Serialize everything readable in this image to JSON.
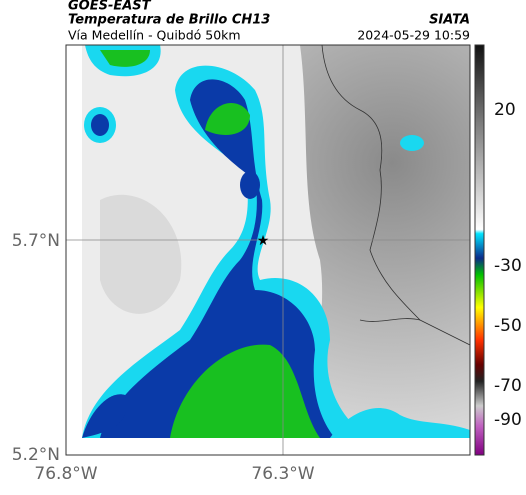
{
  "header": {
    "satellite": "GOES-EAST",
    "product": "Temperatura de Brillo CH13",
    "source": "SIATA",
    "route": "Vía Medellín - Quibdó 50km",
    "datetime": "2024-05-29 10:59"
  },
  "axes": {
    "y_labels": [
      "5.7°N",
      "5.2°N"
    ],
    "x_labels": [
      "76.8°W",
      "76.3°W"
    ]
  },
  "colorbar": {
    "ticks": [
      "20",
      "-30",
      "-50",
      "-70",
      "-90"
    ]
  }
}
